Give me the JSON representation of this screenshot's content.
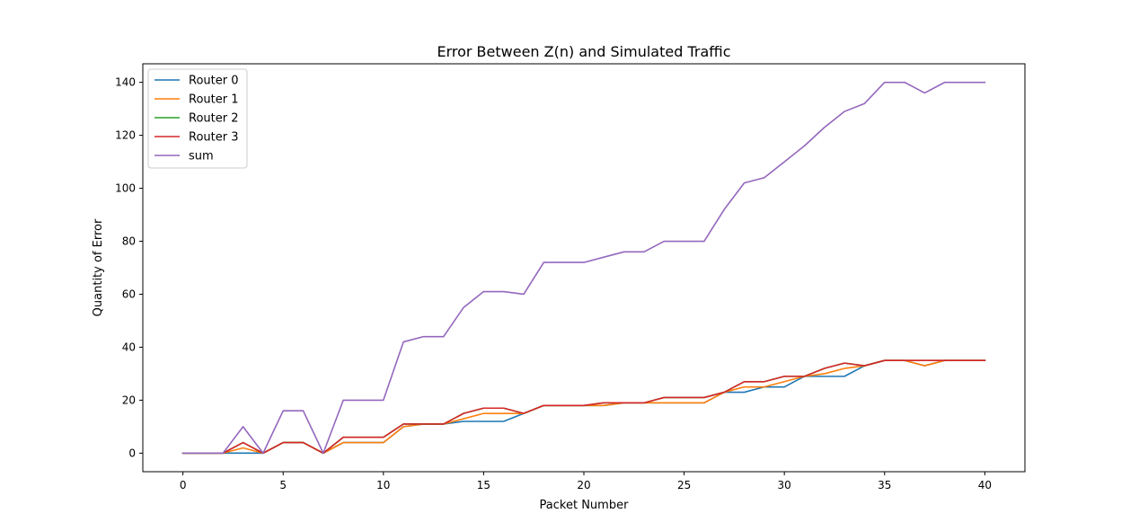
{
  "chart_data": {
    "type": "line",
    "title": "Error Between Z(n) and Simulated Traffic",
    "xlabel": "Packet Number",
    "ylabel": "Quantity of Error",
    "xlim": [
      -2,
      42
    ],
    "ylim": [
      -7,
      147
    ],
    "xticks": [
      0,
      5,
      10,
      15,
      20,
      25,
      30,
      35,
      40
    ],
    "yticks": [
      0,
      20,
      40,
      60,
      80,
      100,
      120,
      140
    ],
    "grid": false,
    "legend_position": "top-left",
    "x": [
      0,
      1,
      2,
      3,
      4,
      5,
      6,
      7,
      8,
      9,
      10,
      11,
      12,
      13,
      14,
      15,
      16,
      17,
      18,
      19,
      20,
      21,
      22,
      23,
      24,
      25,
      26,
      27,
      28,
      29,
      30,
      31,
      32,
      33,
      34,
      35,
      36,
      37,
      38,
      39,
      40
    ],
    "series": [
      {
        "name": "Router 0",
        "color": "#1f77b4",
        "values": [
          0,
          0,
          0,
          0,
          0,
          4,
          4,
          0,
          4,
          4,
          4,
          10,
          11,
          11,
          12,
          12,
          12,
          15,
          18,
          18,
          18,
          18,
          19,
          19,
          19,
          19,
          19,
          23,
          23,
          25,
          25,
          29,
          29,
          29,
          33,
          35,
          35,
          33,
          35,
          35,
          35
        ]
      },
      {
        "name": "Router 1",
        "color": "#ff7f0e",
        "values": [
          0,
          0,
          0,
          2,
          0,
          4,
          4,
          0,
          4,
          4,
          4,
          10,
          11,
          11,
          13,
          15,
          15,
          15,
          18,
          18,
          18,
          18,
          19,
          19,
          19,
          19,
          19,
          23,
          25,
          25,
          27,
          29,
          30,
          32,
          33,
          35,
          35,
          33,
          35,
          35,
          35
        ]
      },
      {
        "name": "Router 2",
        "color": "#2ca02c",
        "values": [
          0,
          0,
          0,
          4,
          0,
          4,
          4,
          0,
          6,
          6,
          6,
          11,
          11,
          11,
          15,
          17,
          17,
          15,
          18,
          18,
          18,
          19,
          19,
          19,
          21,
          21,
          21,
          23,
          27,
          27,
          29,
          29,
          32,
          34,
          33,
          35,
          35,
          35,
          35,
          35,
          35
        ]
      },
      {
        "name": "Router 3",
        "color": "#d62728",
        "values": [
          0,
          0,
          0,
          4,
          0,
          4,
          4,
          0,
          6,
          6,
          6,
          11,
          11,
          11,
          15,
          17,
          17,
          15,
          18,
          18,
          18,
          19,
          19,
          19,
          21,
          21,
          21,
          23,
          27,
          27,
          29,
          29,
          32,
          34,
          33,
          35,
          35,
          35,
          35,
          35,
          35
        ]
      },
      {
        "name": "sum",
        "color": "#9467bd",
        "values": [
          0,
          0,
          0,
          10,
          0,
          16,
          16,
          0,
          20,
          20,
          20,
          42,
          44,
          44,
          55,
          61,
          61,
          60,
          72,
          72,
          72,
          74,
          76,
          76,
          80,
          80,
          80,
          92,
          102,
          104,
          110,
          116,
          123,
          129,
          132,
          140,
          140,
          136,
          140,
          140,
          140
        ]
      }
    ]
  }
}
